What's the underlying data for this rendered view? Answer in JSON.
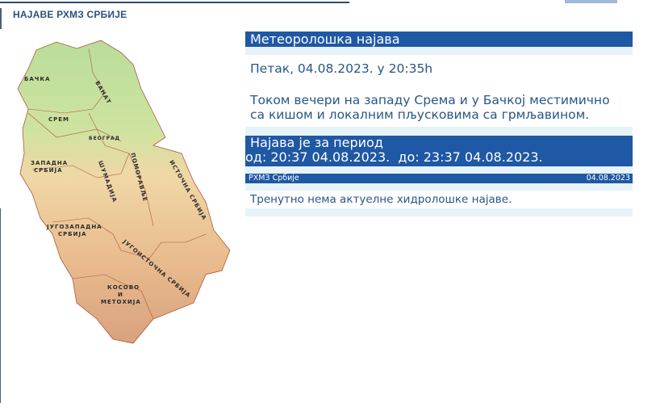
{
  "header": {
    "title": "НАЈАВЕ РХМЗ СРБИЈЕ"
  },
  "map": {
    "regions": [
      "БАЧКА",
      "БАНАТ",
      "СРЕМ",
      "БЕОГРАД",
      "ЗАПАДНА",
      "СРБИЈА",
      "ШУМАДИЈА",
      "ПОМОРАВЉЕ",
      "ИСТОЧНА СРБИЈА",
      "ЈУГОЗАПАДНА",
      "СРБИЈА",
      "ЈУГОИСТОЧНА СРБИЈА",
      "КОСОВО",
      "И",
      "МЕТОХИЈА"
    ]
  },
  "meteo": {
    "heading": "Метеоролошка најава",
    "datetime": "Петак, 04.08.2023. у 20:35h",
    "text_line1": "Током вечери на западу Срема и у Бачкој местимично",
    "text_line2": "са кишом и локалним пљусковима са грмљавином.",
    "period_label": "Најава је за период",
    "period_range": "од: 20:37 04.08.2023.  до: 23:37 04.08.2023.",
    "source": "РХМЗ Србије",
    "source_date": "04.08.2023"
  },
  "hydro": {
    "text": "Тренутно нема актуелне хидролошке најаве."
  },
  "colors": {
    "accent": "#1f58a4",
    "band": "#e6f3f9",
    "text": "#2a5685"
  }
}
